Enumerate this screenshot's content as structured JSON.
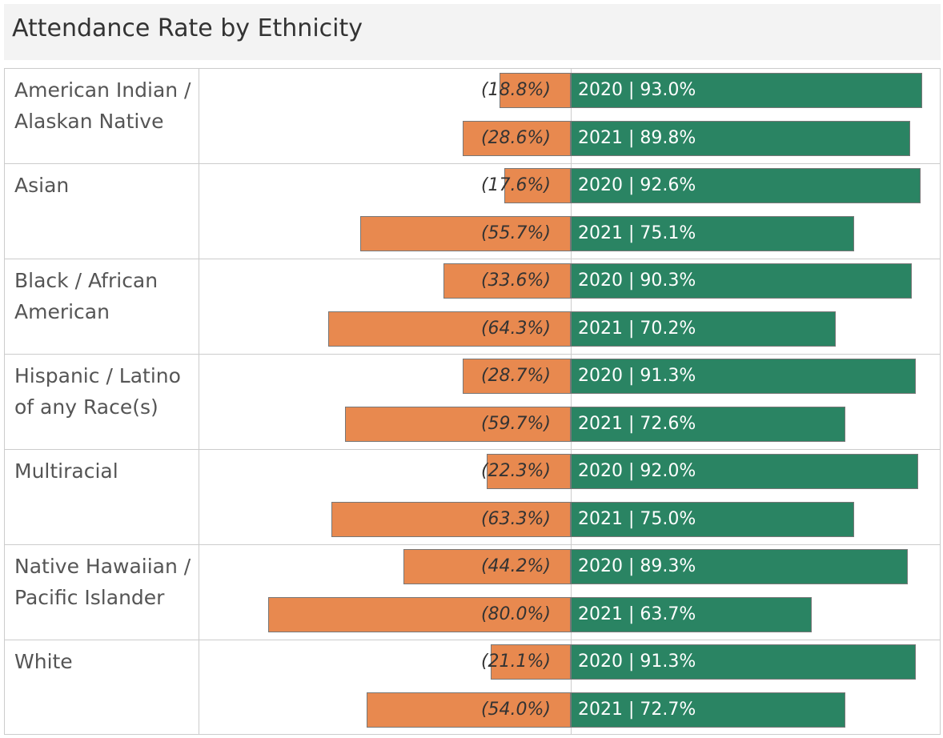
{
  "title": "Attendance Rate by Ethnicity",
  "colors": {
    "attendance": "#2a8463",
    "absence": "#e8894f"
  },
  "groups": [
    {
      "name": "American Indian / Alaskan Native",
      "rows": [
        {
          "attendance": 93.0,
          "attendance_label": "2020 | 93.0%",
          "absence": 18.8,
          "absence_label": "(18.8%)"
        },
        {
          "attendance": 89.8,
          "attendance_label": "2021 | 89.8%",
          "absence": 28.6,
          "absence_label": "(28.6%)"
        }
      ]
    },
    {
      "name": "Asian",
      "rows": [
        {
          "attendance": 92.6,
          "attendance_label": "2020 | 92.6%",
          "absence": 17.6,
          "absence_label": "(17.6%)"
        },
        {
          "attendance": 75.1,
          "attendance_label": "2021 | 75.1%",
          "absence": 55.7,
          "absence_label": "(55.7%)"
        }
      ]
    },
    {
      "name": "Black / African American",
      "rows": [
        {
          "attendance": 90.3,
          "attendance_label": "2020 | 90.3%",
          "absence": 33.6,
          "absence_label": "(33.6%)"
        },
        {
          "attendance": 70.2,
          "attendance_label": "2021 | 70.2%",
          "absence": 64.3,
          "absence_label": "(64.3%)"
        }
      ]
    },
    {
      "name": "Hispanic / Latino of any Race(s)",
      "rows": [
        {
          "attendance": 91.3,
          "attendance_label": "2020 | 91.3%",
          "absence": 28.7,
          "absence_label": "(28.7%)"
        },
        {
          "attendance": 72.6,
          "attendance_label": "2021 | 72.6%",
          "absence": 59.7,
          "absence_label": "(59.7%)"
        }
      ]
    },
    {
      "name": "Multiracial",
      "rows": [
        {
          "attendance": 92.0,
          "attendance_label": "2020 | 92.0%",
          "absence": 22.3,
          "absence_label": "(22.3%)"
        },
        {
          "attendance": 75.0,
          "attendance_label": "2021 | 75.0%",
          "absence": 63.3,
          "absence_label": "(63.3%)"
        }
      ]
    },
    {
      "name": "Native Hawaiian / Pacific Islander",
      "rows": [
        {
          "attendance": 89.3,
          "attendance_label": "2020 | 89.3%",
          "absence": 44.2,
          "absence_label": "(44.2%)"
        },
        {
          "attendance": 63.7,
          "attendance_label": "2021 | 63.7%",
          "absence": 80.0,
          "absence_label": "(80.0%)"
        }
      ]
    },
    {
      "name": "White",
      "rows": [
        {
          "attendance": 91.3,
          "attendance_label": "2020 | 91.3%",
          "absence": 21.1,
          "absence_label": "(21.1%)"
        },
        {
          "attendance": 72.7,
          "attendance_label": "2021 | 72.7%",
          "absence": 54.0,
          "absence_label": "(54.0%)"
        }
      ]
    }
  ]
}
